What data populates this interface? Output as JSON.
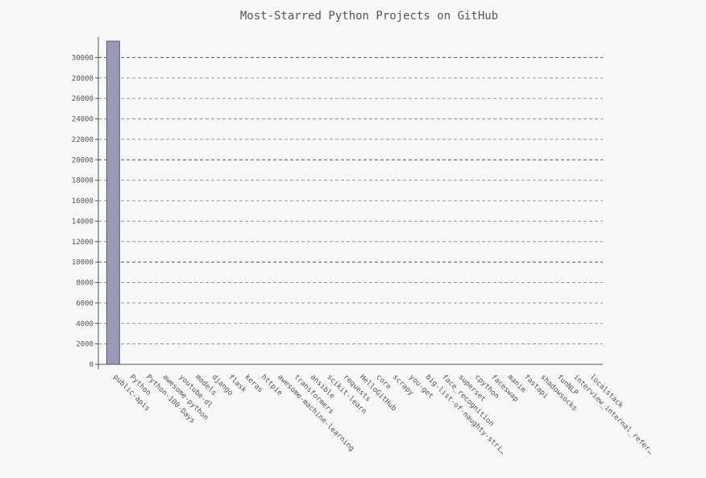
{
  "chart_data": {
    "type": "bar",
    "title": "Most-Starred Python Projects on GitHub",
    "xlabel": "",
    "ylabel": "",
    "ylim": [
      0,
      32000
    ],
    "y_ticks": [
      0,
      2000,
      4000,
      6000,
      8000,
      10000,
      12000,
      14000,
      16000,
      18000,
      20000,
      22000,
      24000,
      26000,
      28000,
      30000
    ],
    "grid": true,
    "categories": [
      "public-apis",
      "Python",
      "Python-100-Days",
      "awesome-python",
      "youtube-dl",
      "models",
      "django",
      "flask",
      "keras",
      "httpie",
      "awesome-machine-learning",
      "transformers",
      "ansible",
      "scikit-learn",
      "requests",
      "HelloGitHub",
      "core",
      "scrapy",
      "you-get",
      "big-list-of-naughty-stri…",
      "face_recognition",
      "superset",
      "cpython",
      "faceswap",
      "manim",
      "fastapi",
      "shadowsocks",
      "funNLP",
      "interview_internal_refer…",
      "localstack"
    ],
    "values": [
      31600,
      0,
      0,
      0,
      0,
      0,
      0,
      0,
      0,
      0,
      0,
      0,
      0,
      0,
      0,
      0,
      0,
      0,
      0,
      0,
      0,
      0,
      0,
      0,
      0,
      0,
      0,
      0,
      0,
      0
    ],
    "colors": {
      "bar": "#9b99b8",
      "bar_stroke": "#5a5878",
      "grid": "#999999",
      "grid_major": "#555555",
      "axis": "#555555"
    }
  }
}
